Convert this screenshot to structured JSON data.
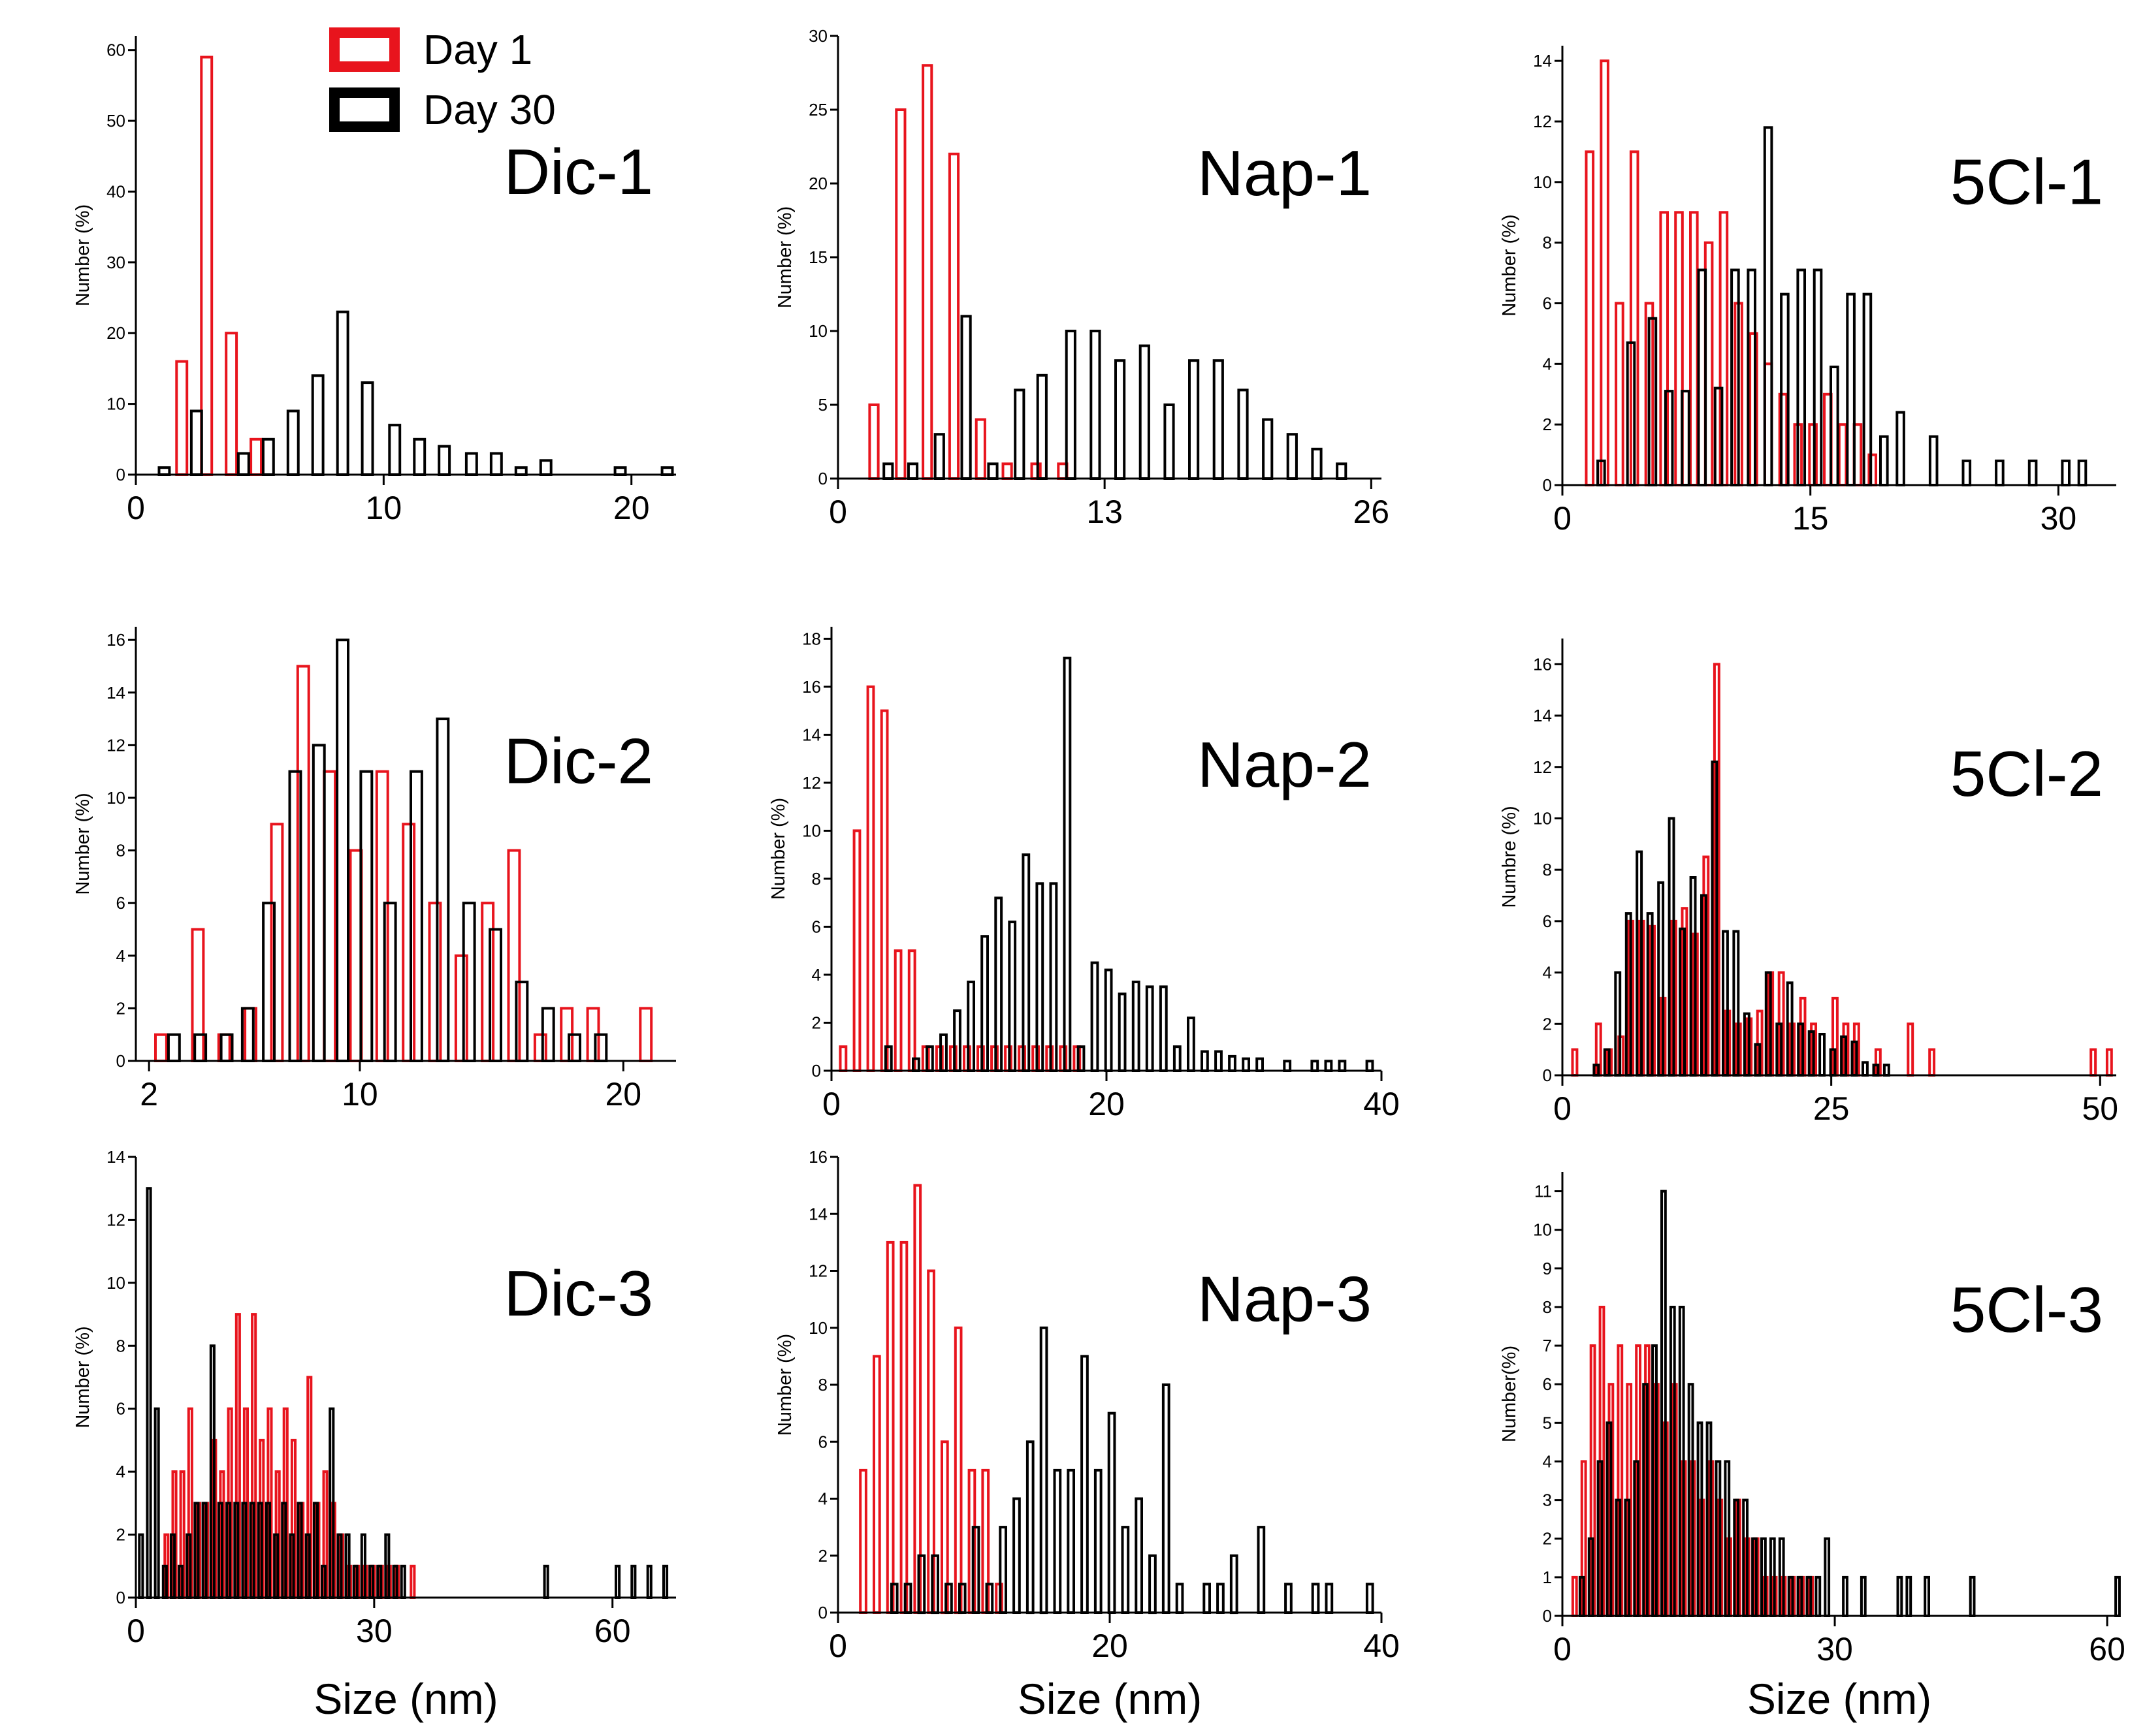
{
  "legend": [
    {
      "label": "Day 1",
      "color": "#e8141d"
    },
    {
      "label": "Day 30",
      "color": "#000000"
    }
  ],
  "x_axis_title": "Size (nm)",
  "chart_data": [
    {
      "type": "bar",
      "label": "Dic-1",
      "ylabel": "Number (%)",
      "xlim": [
        0,
        21.8
      ],
      "ylim": [
        0,
        62
      ],
      "xticks": [
        0,
        10,
        20
      ],
      "yticks": [
        0,
        10,
        20,
        30,
        40,
        50,
        60
      ],
      "series": [
        {
          "name": "Day 1",
          "x": [
            2,
            3,
            4,
            5
          ],
          "values": [
            16,
            59,
            20,
            5
          ]
        },
        {
          "name": "Day 30",
          "x": [
            1,
            2.3,
            4.2,
            5.2,
            6.2,
            7.2,
            8.2,
            9.2,
            10.3,
            11.3,
            12.3,
            13.4,
            14.4,
            15.4,
            16.4,
            19.4,
            21.3
          ],
          "values": [
            1,
            9,
            3,
            5,
            9,
            14,
            23,
            13,
            7,
            5,
            4,
            3,
            3,
            1,
            2,
            1,
            1
          ]
        }
      ]
    },
    {
      "type": "bar",
      "label": "Nap-1",
      "ylabel": "Number (%)",
      "xlim": [
        0,
        26.5
      ],
      "ylim": [
        0,
        30
      ],
      "xticks": [
        0,
        13,
        26
      ],
      "yticks": [
        0,
        5,
        10,
        15,
        20,
        25,
        30
      ],
      "series": [
        {
          "name": "Day 1",
          "x": [
            1.9,
            3.2,
            4.5,
            5.8,
            7.1,
            8.4,
            9.8,
            11.1
          ],
          "values": [
            5,
            25,
            28,
            22,
            4,
            1,
            1,
            1
          ]
        },
        {
          "name": "Day 30",
          "x": [
            2.3,
            3.5,
            4.8,
            6.1,
            7.4,
            8.7,
            9.8,
            11.2,
            12.4,
            13.6,
            14.8,
            16,
            17.2,
            18.4,
            19.6,
            20.8,
            22,
            23.2,
            24.4
          ],
          "values": [
            1,
            1,
            3,
            11,
            1,
            6,
            7,
            10,
            10,
            8,
            9,
            5,
            8,
            8,
            6,
            4,
            3,
            2,
            1
          ]
        }
      ]
    },
    {
      "type": "bar",
      "label": "5Cl-1",
      "ylabel": "Number (%)",
      "xlim": [
        0,
        33.5
      ],
      "ylim": [
        0,
        14.5
      ],
      "xticks": [
        0,
        15,
        30
      ],
      "yticks": [
        0,
        2,
        4,
        6,
        8,
        10,
        12,
        14
      ],
      "series": [
        {
          "name": "Day 1",
          "x": [
            1.8,
            2.7,
            3.6,
            4.5,
            5.4,
            6.3,
            7.2,
            8.1,
            9,
            9.9,
            10.8,
            11.7,
            12.6,
            13.5,
            14.4,
            15.3,
            16.2,
            17.1,
            18,
            18.9
          ],
          "values": [
            11,
            14,
            6,
            11,
            6,
            9,
            9,
            9,
            8,
            9,
            6,
            5,
            4,
            3,
            2,
            2,
            3,
            2,
            2,
            1
          ]
        },
        {
          "name": "Day 30",
          "x": [
            2.2,
            4,
            5.3,
            6.3,
            7.3,
            8.3,
            9.3,
            10.3,
            11.3,
            12.3,
            13.3,
            14.3,
            15.3,
            16.3,
            17.3,
            18.3,
            19.3,
            20.3,
            22.3,
            24.3,
            26.3,
            28.3,
            30.3,
            31.3
          ],
          "values": [
            0.8,
            4.7,
            5.5,
            3.1,
            3.1,
            7.1,
            3.2,
            7.1,
            7.1,
            11.8,
            6.3,
            7.1,
            7.1,
            3.9,
            6.3,
            6.3,
            1.6,
            2.4,
            1.6,
            0.8,
            0.8,
            0.8,
            0.8,
            0.8
          ]
        }
      ]
    },
    {
      "type": "bar",
      "label": "Dic-2",
      "ylabel": "Number (%)",
      "xlim": [
        1.5,
        22
      ],
      "ylim": [
        0,
        16.5
      ],
      "xticks": [
        2,
        10,
        20
      ],
      "yticks": [
        0,
        2,
        4,
        6,
        8,
        10,
        12,
        14,
        16
      ],
      "series": [
        {
          "name": "Day 1",
          "x": [
            2.6,
            4,
            5,
            6,
            7,
            8,
            9,
            10,
            11,
            12,
            13,
            14,
            15,
            16,
            17,
            18,
            19,
            21
          ],
          "values": [
            1,
            5,
            1,
            2,
            9,
            15,
            11,
            8,
            11,
            9,
            6,
            4,
            6,
            8,
            1,
            2,
            2,
            2
          ]
        },
        {
          "name": "Day 30",
          "x": [
            2.8,
            3.8,
            4.8,
            5.6,
            6.4,
            7.4,
            8.3,
            9.2,
            10.1,
            11,
            12,
            13,
            14,
            15,
            16,
            17,
            18,
            19
          ],
          "values": [
            1,
            1,
            1,
            2,
            6,
            11,
            12,
            16,
            11,
            6,
            11,
            13,
            6,
            5,
            3,
            2,
            1,
            1
          ]
        }
      ]
    },
    {
      "type": "bar",
      "label": "Nap-2",
      "ylabel": "Number (%)",
      "xlim": [
        0,
        40
      ],
      "ylim": [
        0,
        18.5
      ],
      "xticks": [
        0,
        20,
        40
      ],
      "yticks": [
        0,
        2,
        4,
        6,
        8,
        10,
        12,
        14,
        16,
        18
      ],
      "series": [
        {
          "name": "Day 1",
          "x": [
            1,
            2,
            3,
            4,
            5,
            6,
            7,
            8,
            9,
            10,
            11,
            12,
            13,
            14,
            15,
            16,
            17,
            18
          ],
          "values": [
            1,
            10,
            16,
            15,
            5,
            5,
            1,
            1,
            1,
            1,
            1,
            1,
            1,
            1,
            1,
            1,
            1,
            1
          ]
        },
        {
          "name": "Day 30",
          "x": [
            4,
            6,
            7,
            8,
            9,
            10,
            11,
            12,
            13,
            14,
            15,
            16,
            17,
            18,
            19,
            20,
            21,
            22,
            23,
            24,
            25,
            26,
            27,
            28,
            29,
            30,
            31,
            33,
            35,
            36,
            37,
            39
          ],
          "values": [
            1,
            0.5,
            1,
            1.5,
            2.5,
            3.7,
            5.6,
            7.2,
            6.2,
            9,
            7.8,
            7.8,
            17.2,
            1,
            4.5,
            4.2,
            3.2,
            3.7,
            3.5,
            3.5,
            1,
            2.2,
            0.8,
            0.8,
            0.6,
            0.5,
            0.5,
            0.4,
            0.4,
            0.4,
            0.4,
            0.4
          ]
        }
      ]
    },
    {
      "type": "bar",
      "label": "5Cl-2",
      "ylabel": "Numbre (%)",
      "xlim": [
        0,
        51.5
      ],
      "ylim": [
        0,
        17
      ],
      "xticks": [
        0,
        25,
        50
      ],
      "yticks": [
        0,
        2,
        4,
        6,
        8,
        10,
        12,
        14,
        16
      ],
      "series": [
        {
          "name": "Day 1",
          "x": [
            1.3,
            3.5,
            4.5,
            5.6,
            6.5,
            7.5,
            8.5,
            9.5,
            10.5,
            11.5,
            12.5,
            13.5,
            14.5,
            15.5,
            16.5,
            17.5,
            18.5,
            19.5,
            20.5,
            21.5,
            22.5,
            23.5,
            25.5,
            26.5,
            27.5,
            29.5,
            32.5,
            34.5,
            49.5,
            51
          ],
          "values": [
            1,
            2,
            1,
            1.5,
            6,
            6,
            5.8,
            3,
            6,
            6.5,
            5.5,
            8.5,
            16,
            2.5,
            2,
            2.2,
            2.5,
            4,
            4,
            2,
            3,
            2,
            3,
            2,
            2,
            1,
            2,
            1,
            1,
            1
          ]
        },
        {
          "name": "Day 30",
          "x": [
            3,
            4,
            5,
            6,
            7,
            8,
            9,
            10,
            11,
            12,
            13,
            14,
            15,
            16,
            17,
            18,
            19,
            20,
            21,
            22,
            23,
            24,
            25,
            26,
            27,
            28,
            29,
            30
          ],
          "values": [
            0.4,
            1,
            4,
            6.3,
            8.7,
            6.3,
            7.5,
            10,
            5.7,
            7.7,
            7,
            12.2,
            5.6,
            5.6,
            2.4,
            1.2,
            4,
            2,
            3.6,
            2,
            1.7,
            1.6,
            1,
            1.5,
            1.3,
            0.5,
            0.4,
            0.4
          ]
        }
      ]
    },
    {
      "type": "bar",
      "label": "Dic-3",
      "ylabel": "Number (%)",
      "xlim": [
        0,
        68
      ],
      "ylim": [
        0,
        14
      ],
      "xticks": [
        0,
        30,
        60
      ],
      "yticks": [
        0,
        2,
        4,
        6,
        8,
        10,
        12,
        14
      ],
      "series": [
        {
          "name": "Day 1",
          "x": [
            4,
            5,
            6,
            7,
            8,
            9,
            10,
            11,
            12,
            13,
            14,
            15,
            16,
            17,
            18,
            19,
            20,
            21,
            22,
            23,
            24,
            25,
            26,
            27,
            28,
            29,
            30,
            31,
            32,
            33,
            35
          ],
          "values": [
            2,
            4,
            4,
            6,
            3,
            3,
            5,
            4,
            6,
            9,
            6,
            9,
            5,
            6,
            4,
            6,
            5,
            3,
            7,
            3,
            4,
            3,
            2,
            1,
            1,
            1,
            1,
            1,
            1,
            1,
            1
          ]
        },
        {
          "name": "Day 30",
          "x": [
            0.5,
            1.5,
            2.5,
            3.5,
            4.5,
            5.5,
            6.5,
            7.5,
            8.5,
            9.5,
            10.5,
            11.5,
            12.5,
            13.5,
            14.5,
            15.5,
            16.5,
            17.5,
            18.5,
            19.5,
            20.5,
            21.5,
            22.5,
            23.5,
            24.5,
            25.5,
            26.5,
            27.5,
            28.5,
            29.5,
            30.5,
            31.5,
            32.5,
            33.5,
            51.5,
            60.5,
            62.5,
            64.5,
            66.5
          ],
          "values": [
            2,
            13,
            6,
            1,
            2,
            1,
            2,
            3,
            3,
            8,
            3,
            3,
            3,
            3,
            3,
            3,
            3,
            2,
            3,
            2,
            3,
            2,
            3,
            1,
            6,
            2,
            2,
            1,
            2,
            1,
            1,
            2,
            1,
            1,
            1,
            1,
            1,
            1,
            1
          ]
        }
      ]
    },
    {
      "type": "bar",
      "label": "Nap-3",
      "ylabel": "Number (%)",
      "xlim": [
        0,
        40
      ],
      "ylim": [
        0,
        16
      ],
      "xticks": [
        0,
        20,
        40
      ],
      "yticks": [
        0,
        2,
        4,
        6,
        8,
        10,
        12,
        14,
        16
      ],
      "series": [
        {
          "name": "Day 1",
          "x": [
            2,
            3,
            4,
            5,
            6,
            7,
            8,
            9,
            10,
            11,
            12
          ],
          "values": [
            5,
            9,
            13,
            13,
            15,
            12,
            6,
            10,
            5,
            5,
            1
          ]
        },
        {
          "name": "Day 30",
          "x": [
            4,
            5,
            6,
            7,
            8,
            9,
            10,
            11,
            12,
            13,
            14,
            15,
            16,
            17,
            18,
            19,
            20,
            21,
            22,
            23,
            24,
            25,
            27,
            28,
            29,
            31,
            33,
            35,
            36,
            39
          ],
          "values": [
            1,
            1,
            2,
            2,
            1,
            1,
            3,
            1,
            3,
            4,
            6,
            10,
            5,
            5,
            9,
            5,
            7,
            3,
            4,
            2,
            8,
            1,
            1,
            1,
            2,
            3,
            1,
            1,
            1,
            1
          ]
        }
      ]
    },
    {
      "type": "bar",
      "label": "5Cl-3",
      "ylabel": "Number(%)",
      "xlim": [
        0,
        61
      ],
      "ylim": [
        0,
        11.5
      ],
      "xticks": [
        0,
        30,
        60
      ],
      "yticks": [
        0,
        1,
        2,
        3,
        4,
        5,
        6,
        7,
        8,
        9,
        10,
        11
      ],
      "series": [
        {
          "name": "Day 1",
          "x": [
            1.5,
            2.5,
            3.5,
            4.5,
            5.5,
            6.5,
            7.5,
            8.5,
            9.5,
            10.5,
            11.5,
            12.5,
            13.5,
            14.5,
            15.5,
            16.5,
            17.5,
            18.5,
            19.5,
            20.5,
            21.5,
            22.5,
            23.5,
            24.5,
            25.5,
            26.5,
            27.5
          ],
          "values": [
            1,
            4,
            7,
            8,
            6,
            7,
            6,
            7,
            7,
            6,
            5,
            6,
            4,
            4,
            3,
            4,
            3,
            2,
            3,
            2,
            2,
            1,
            1,
            1,
            1,
            1,
            1
          ]
        },
        {
          "name": "Day 30",
          "x": [
            2,
            3,
            4,
            5,
            6,
            7,
            8,
            9,
            10,
            11,
            12,
            13,
            14,
            15,
            16,
            17,
            18,
            19,
            20,
            21,
            22,
            23,
            24,
            25,
            26,
            27,
            28,
            29,
            31,
            33,
            37,
            38,
            40,
            45,
            61
          ],
          "values": [
            1,
            2,
            4,
            5,
            3,
            3,
            4,
            6,
            7,
            11,
            8,
            8,
            6,
            5,
            5,
            4,
            4,
            3,
            3,
            2,
            2,
            2,
            2,
            1,
            1,
            1,
            1,
            2,
            1,
            1,
            1,
            1,
            1,
            1,
            1
          ]
        }
      ]
    }
  ]
}
